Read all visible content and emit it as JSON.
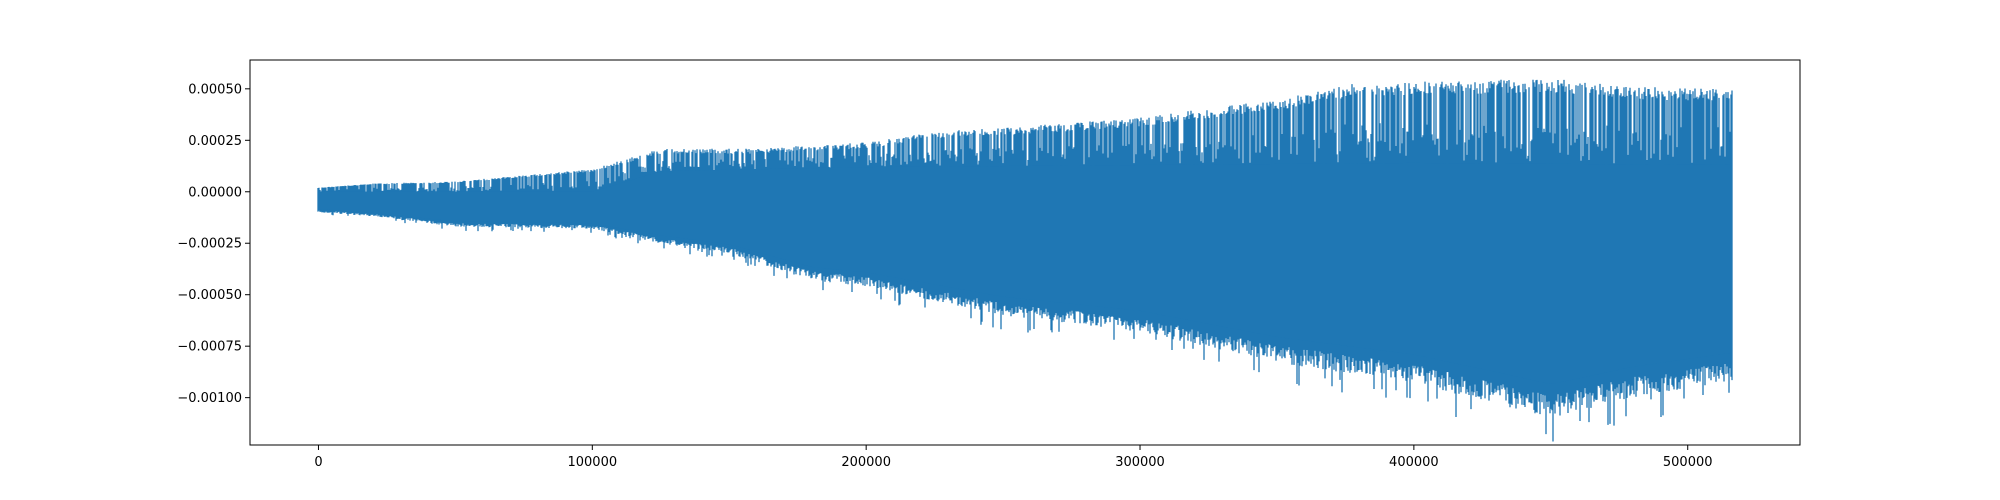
{
  "chart_data": {
    "type": "line",
    "title": "",
    "xlabel": "",
    "ylabel": "",
    "xlim": [
      -25000,
      541000
    ],
    "ylim": [
      -0.00123,
      0.00064
    ],
    "grid": false,
    "legend": "none",
    "series_color": "#1f77b4",
    "x_ticks": [
      {
        "value": 0,
        "label": "0"
      },
      {
        "value": 100000,
        "label": "100000"
      },
      {
        "value": 200000,
        "label": "200000"
      },
      {
        "value": 300000,
        "label": "300000"
      },
      {
        "value": 400000,
        "label": "400000"
      },
      {
        "value": 500000,
        "label": "500000"
      }
    ],
    "y_ticks": [
      {
        "value": 0.0005,
        "label": "0.00050"
      },
      {
        "value": 0.00025,
        "label": "0.00025"
      },
      {
        "value": 0.0,
        "label": "0.00000"
      },
      {
        "value": -0.00025,
        "label": "−0.00025"
      },
      {
        "value": -0.0005,
        "label": "−0.00050"
      },
      {
        "value": -0.00075,
        "label": "−0.00075"
      },
      {
        "value": -0.001,
        "label": "−0.00100"
      }
    ],
    "series": [
      {
        "x_start": 0,
        "x_end": 516000,
        "upper_envelope": {
          "x": [
            0,
            20000,
            50000,
            100000,
            125000,
            160000,
            200000,
            230000,
            250000,
            300000,
            350000,
            380000,
            420000,
            450000,
            480000,
            516000
          ],
          "y": [
            2e-05,
            4e-05,
            5e-05,
            0.00011,
            0.00021,
            0.00021,
            0.00024,
            0.0003,
            0.00031,
            0.00036,
            0.00045,
            0.00053,
            0.00054,
            0.00055,
            0.00051,
            0.0005
          ]
        },
        "inner_upper_envelope": {
          "x": [
            0,
            100000,
            125000,
            200000,
            300000,
            400000,
            516000
          ],
          "y": [
            0.0,
            0.0,
            0.0001,
            0.00012,
            0.00013,
            0.00014,
            0.00013
          ]
        },
        "lower_envelope": {
          "x": [
            0,
            20000,
            50000,
            100000,
            125000,
            150000,
            180000,
            200000,
            250000,
            300000,
            350000,
            400000,
            430000,
            450000,
            480000,
            516000
          ],
          "y": [
            -0.0001,
            -0.00012,
            -0.00017,
            -0.00018,
            -0.00025,
            -0.0003,
            -0.00043,
            -0.00046,
            -0.0006,
            -0.00068,
            -0.00083,
            -0.00093,
            -0.00103,
            -0.0011,
            -0.001,
            -0.00092
          ]
        }
      }
    ]
  }
}
